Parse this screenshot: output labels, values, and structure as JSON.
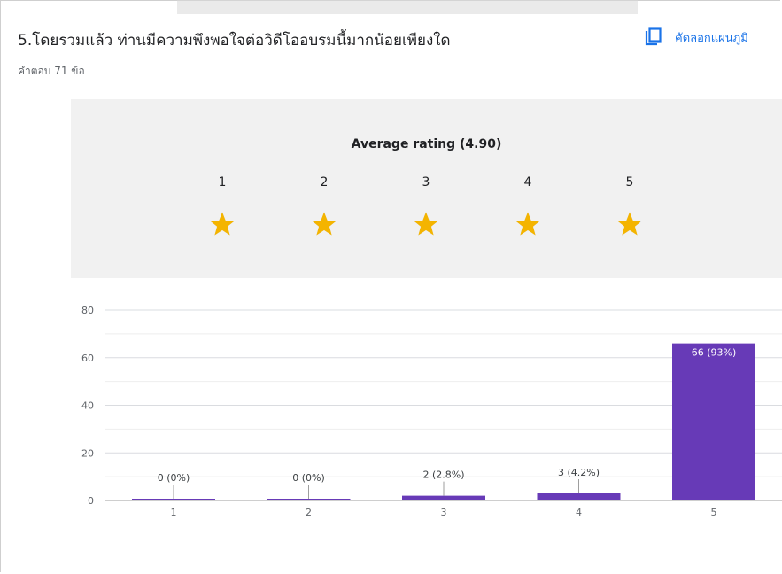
{
  "question": {
    "title": "5.โดยรวมแล้ว ท่านมีความพึงพอใจต่อวิดีโออบรมนี้มากน้อยเพียงใด",
    "responses": "คำตอบ 71 ข้อ"
  },
  "toolbar": {
    "copy_label": "คัดลอกแผนภูมิ",
    "copy_icon": "copy-icon"
  },
  "rating": {
    "title": "Average rating (4.90)",
    "average": 4.9,
    "stars": [
      "1",
      "2",
      "3",
      "4",
      "5"
    ],
    "star_color": "#f4b400",
    "star_empty_color": "#c9c9c9"
  },
  "colors": {
    "bar": "#673ab7",
    "accent": "#1a73e8",
    "panel": "#f1f1f1"
  },
  "chart_data": {
    "type": "bar",
    "categories": [
      "1",
      "2",
      "3",
      "4",
      "5"
    ],
    "values": [
      0,
      0,
      2,
      3,
      66
    ],
    "labels": [
      "0 (0%)",
      "0 (0%)",
      "2 (2.8%)",
      "3 (4.2%)",
      "66 (93%)"
    ],
    "yticks": [
      "0",
      "20",
      "40",
      "60",
      "80"
    ],
    "ylim": [
      0,
      80
    ],
    "grid": true
  }
}
